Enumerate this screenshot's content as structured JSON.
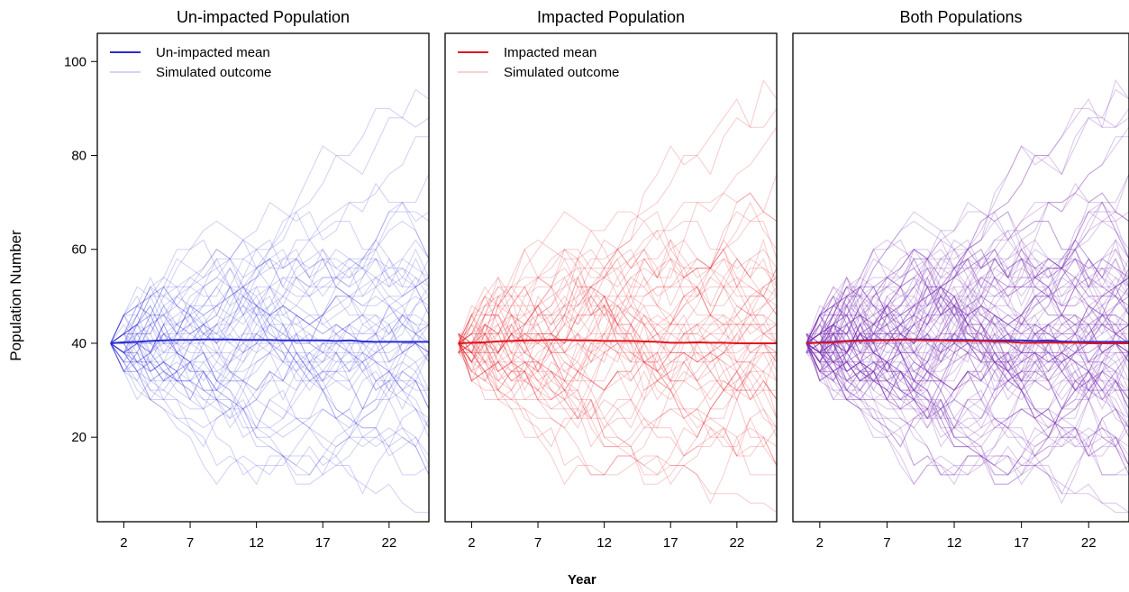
{
  "figure": {
    "ylabel": "Population Number",
    "xlabel": "Year"
  },
  "colors": {
    "unimpacted": "#2b2bd4",
    "impacted": "#e0141c",
    "combined": "#7a2fb4"
  },
  "chart_data": [
    {
      "type": "line",
      "title": "Un-impacted Population",
      "xlabel": "Year",
      "ylabel": "Population Number",
      "x_ticks": [
        2,
        7,
        12,
        17,
        22
      ],
      "y_ticks": [
        20,
        40,
        60,
        80,
        100
      ],
      "xlim": [
        0,
        25
      ],
      "ylim": [
        2,
        106
      ],
      "legend": {
        "position": "top-left",
        "entries": [
          "Un-impacted mean",
          "Simulated outcome"
        ]
      },
      "x": [
        1,
        2,
        3,
        4,
        5,
        6,
        7,
        8,
        9,
        10,
        11,
        12,
        13,
        14,
        15,
        16,
        17,
        18,
        19,
        20,
        21,
        22,
        23,
        24,
        25
      ],
      "series": [
        {
          "name": "Un-impacted mean",
          "values": [
            40,
            40.2,
            40.3,
            40.5,
            40.6,
            40.7,
            40.7,
            40.8,
            40.8,
            40.8,
            40.7,
            40.7,
            40.7,
            40.6,
            40.6,
            40.6,
            40.6,
            40.5,
            40.6,
            40.4,
            40.3,
            40.3,
            40.3,
            40.3,
            40.3
          ]
        }
      ],
      "simulation": {
        "name": "Simulated outcome",
        "count": 60,
        "start": 40
      }
    },
    {
      "type": "line",
      "title": "Impacted Population",
      "xlabel": "Year",
      "ylabel": "Population Number",
      "x_ticks": [
        2,
        7,
        12,
        17,
        22
      ],
      "y_ticks": [
        20,
        40,
        60,
        80,
        100
      ],
      "xlim": [
        0,
        25
      ],
      "ylim": [
        2,
        106
      ],
      "legend": {
        "position": "top-left",
        "entries": [
          "Impacted mean",
          "Simulated outcome"
        ]
      },
      "x": [
        1,
        2,
        3,
        4,
        5,
        6,
        7,
        8,
        9,
        10,
        11,
        12,
        13,
        14,
        15,
        16,
        17,
        18,
        19,
        20,
        21,
        22,
        23,
        24,
        25
      ],
      "series": [
        {
          "name": "Impacted mean",
          "values": [
            40,
            40.1,
            40.2,
            40.4,
            40.5,
            40.6,
            40.6,
            40.7,
            40.7,
            40.6,
            40.6,
            40.5,
            40.5,
            40.5,
            40.4,
            40.3,
            40.1,
            40.1,
            40.2,
            40.1,
            40.1,
            40,
            40,
            40,
            40
          ]
        }
      ],
      "simulation": {
        "name": "Simulated outcome",
        "count": 60,
        "start": 40
      }
    },
    {
      "type": "line",
      "title": "Both Populations",
      "xlabel": "Year",
      "ylabel": "Population Number",
      "x_ticks": [
        2,
        7,
        12,
        17,
        22
      ],
      "y_ticks": [
        20,
        40,
        60,
        80,
        100
      ],
      "xlim": [
        0,
        25
      ],
      "ylim": [
        2,
        106
      ],
      "x": [
        1,
        2,
        3,
        4,
        5,
        6,
        7,
        8,
        9,
        10,
        11,
        12,
        13,
        14,
        15,
        16,
        17,
        18,
        19,
        20,
        21,
        22,
        23,
        24,
        25
      ],
      "series": [
        {
          "values": [
            40,
            40.2,
            40.3,
            40.5,
            40.6,
            40.7,
            40.7,
            40.8,
            40.8,
            40.8,
            40.7,
            40.7,
            40.7,
            40.6,
            40.6,
            40.6,
            40.6,
            40.5,
            40.6,
            40.4,
            40.3,
            40.3,
            40.3,
            40.3,
            40.3
          ]
        },
        {
          "values": [
            40,
            40.1,
            40.2,
            40.4,
            40.5,
            40.6,
            40.6,
            40.7,
            40.7,
            40.6,
            40.6,
            40.5,
            40.5,
            40.5,
            40.4,
            40.3,
            40.1,
            40.1,
            40.2,
            40.1,
            40.1,
            40,
            40,
            40,
            40
          ]
        }
      ],
      "simulation": {
        "count": 60,
        "start": 40
      }
    }
  ]
}
